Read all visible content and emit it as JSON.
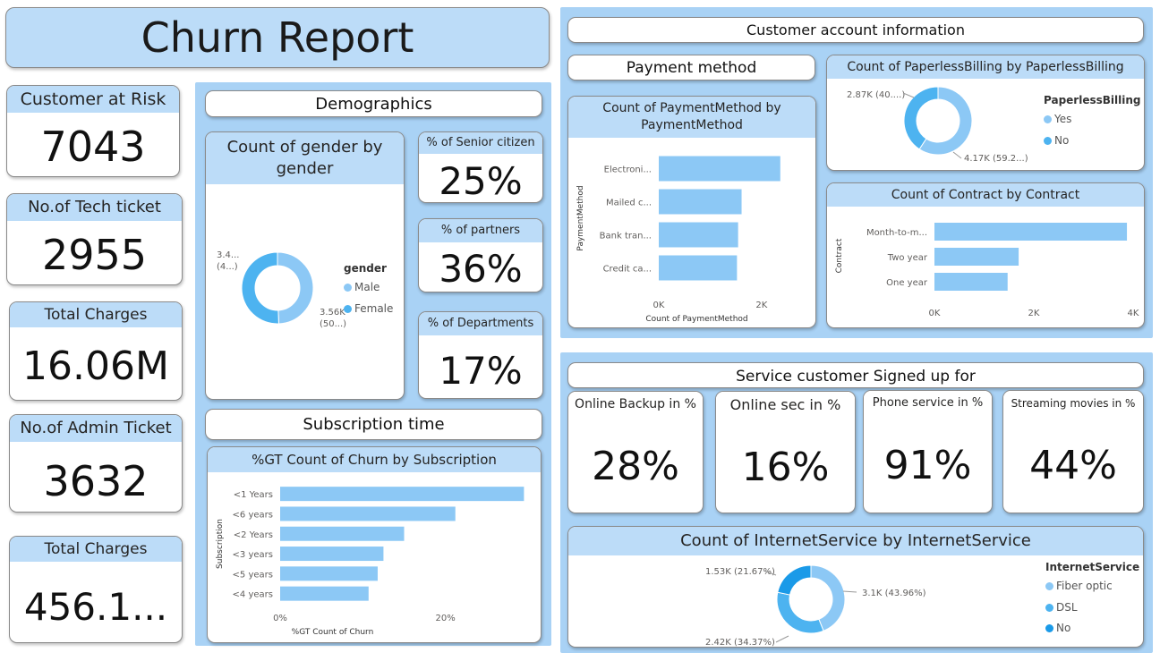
{
  "title": "Churn Report",
  "kpis": [
    {
      "label": "Customer at Risk",
      "value": "7043"
    },
    {
      "label": "No.of Tech ticket",
      "value": "2955"
    },
    {
      "label": "Total Charges",
      "value": "16.06M"
    },
    {
      "label": "No.of Admin Ticket",
      "value": "3632"
    },
    {
      "label": "Total Charges",
      "value": "456.1..."
    }
  ],
  "demographics": {
    "header": "Demographics",
    "senior": {
      "label": "% of Senior citizen",
      "value": "25%"
    },
    "partners": {
      "label": "% of partners",
      "value": "36%"
    },
    "departments": {
      "label": "% of Departments",
      "value": "17%"
    }
  },
  "subscription_header": "Subscription time",
  "account": {
    "header": "Customer account information",
    "payment_header": "Payment method"
  },
  "services": {
    "header": "Service customer Signed up for",
    "cards": [
      {
        "label": "Online Backup in %",
        "value": "28%"
      },
      {
        "label": "Online sec in %",
        "value": "16%"
      },
      {
        "label": "Phone service in %",
        "value": "91%"
      },
      {
        "label": "Streaming movies in %",
        "value": "44%"
      }
    ]
  },
  "colors": {
    "panel": "#a9d2f5",
    "header": "#bcdcf8",
    "bar": "#8cc8f5",
    "light": "#8cc8f5",
    "mid": "#4db3f0",
    "dark": "#1a9ae8"
  },
  "chart_data": [
    {
      "id": "gender",
      "type": "pie",
      "title": "Count of gender by gender",
      "legend_title": "gender",
      "legend_position": "right",
      "slices": [
        {
          "name": "Male",
          "value": 3480,
          "label": "3.4...\n(4...)",
          "color": "#8cc8f5"
        },
        {
          "name": "Female",
          "value": 3560,
          "label": "3.56K\n(50...)",
          "color": "#4db3f0"
        }
      ]
    },
    {
      "id": "subscription",
      "type": "bar",
      "title": "%GT Count of Churn by Subscription",
      "xlabel": "%GT Count of Churn",
      "ylabel": "Subscription",
      "categories": [
        "<1 Years",
        "<6 years",
        "<2 Years",
        "<3 years",
        "<5 years",
        "<4 years"
      ],
      "values": [
        29.5,
        21.2,
        15.0,
        12.5,
        11.8,
        10.7
      ],
      "xlim": [
        0,
        30
      ],
      "ticks": [
        "0%",
        "20%"
      ],
      "tick_values": [
        0,
        20
      ]
    },
    {
      "id": "payment",
      "type": "bar",
      "title": "Count of PaymentMethod by PaymentMethod",
      "xlabel": "Count of PaymentMethod",
      "ylabel": "PaymentMethod",
      "categories": [
        "Electroni...",
        "Mailed c...",
        "Bank tran...",
        "Credit ca..."
      ],
      "values": [
        2365,
        1612,
        1544,
        1522
      ],
      "xlim": [
        0,
        2700
      ],
      "ticks": [
        "0K",
        "2K"
      ],
      "tick_values": [
        0,
        2000
      ]
    },
    {
      "id": "paperless",
      "type": "pie",
      "title": "Count of PaperlessBilling by PaperlessBilling",
      "legend_title": "PaperlessBilling",
      "legend_position": "right",
      "slices": [
        {
          "name": "Yes",
          "value": 4170,
          "label": "4.17K (59.2...)",
          "color": "#8cc8f5"
        },
        {
          "name": "No",
          "value": 2870,
          "label": "2.87K (40....)",
          "color": "#4db3f0"
        }
      ]
    },
    {
      "id": "contract",
      "type": "bar",
      "title": "Count of Contract by Contract",
      "ylabel": "Contract",
      "categories": [
        "Month-to-m...",
        "Two year",
        "One year"
      ],
      "values": [
        3875,
        1695,
        1473
      ],
      "xlim": [
        0,
        4000
      ],
      "ticks": [
        "0K",
        "2K",
        "4K"
      ],
      "tick_values": [
        0,
        2000,
        4000
      ]
    },
    {
      "id": "internet",
      "type": "pie",
      "title": "Count of InternetService by InternetService",
      "legend_title": "InternetService",
      "legend_position": "right",
      "slices": [
        {
          "name": "Fiber optic",
          "value": 3100,
          "label": "3.1K (43.96%)",
          "color": "#8cc8f5"
        },
        {
          "name": "DSL",
          "value": 2420,
          "label": "2.42K (34.37%)",
          "color": "#4db3f0"
        },
        {
          "name": "No",
          "value": 1530,
          "label": "1.53K (21.67%)",
          "color": "#1a9ae8"
        }
      ]
    }
  ]
}
